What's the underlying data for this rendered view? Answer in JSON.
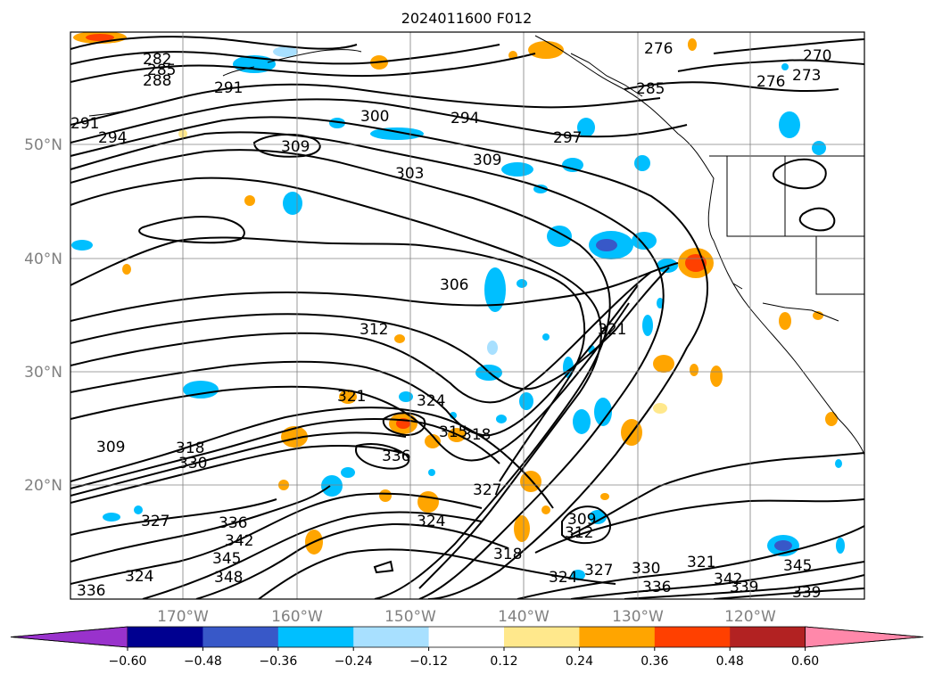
{
  "title": "2024011600 F012",
  "map": {
    "lat_labels": [
      "50°N",
      "40°N",
      "30°N",
      "20°N"
    ],
    "lon_labels": [
      "170°W",
      "160°W",
      "150°W",
      "140°W",
      "130°W",
      "120°W"
    ],
    "contour_labels": [
      "282",
      "285",
      "288",
      "291",
      "291",
      "294",
      "300",
      "294",
      "309",
      "297",
      "303",
      "309",
      "306",
      "312",
      "321",
      "324",
      "321",
      "315",
      "318",
      "336",
      "309",
      "318",
      "330",
      "327",
      "324",
      "309",
      "312",
      "327",
      "336",
      "342",
      "345",
      "348",
      "324",
      "336",
      "318",
      "324",
      "327",
      "330",
      "336",
      "321",
      "342",
      "345",
      "339",
      "339",
      "276",
      "270",
      "273",
      "276",
      "285"
    ]
  },
  "colorbar": {
    "tick_labels": [
      "−0.60",
      "−0.48",
      "−0.36",
      "−0.24",
      "−0.12",
      "0.12",
      "0.24",
      "0.36",
      "0.48",
      "0.60"
    ],
    "colors": [
      "#9932cc",
      "#000090",
      "#3858c8",
      "#00bfff",
      "#a8e0ff",
      "#ffffff",
      "#ffe88c",
      "#ffa500",
      "#ff4000",
      "#b22222",
      "#ff88aa"
    ]
  }
}
